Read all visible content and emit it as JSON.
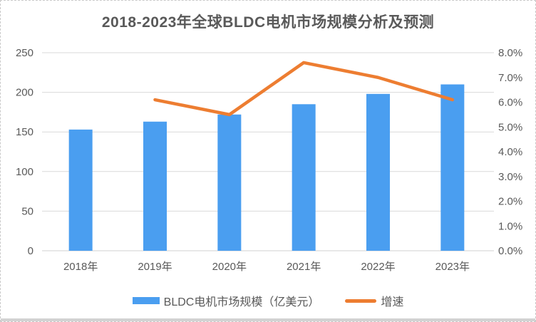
{
  "chart_data": {
    "type": "combo",
    "title": "2018-2023年全球BLDC电机市场规模分析及预测",
    "categories": [
      "2018年",
      "2019年",
      "2020年",
      "2021年",
      "2022年",
      "2023年"
    ],
    "series": [
      {
        "name": "BLDC电机市场规模（亿美元）",
        "type": "bar",
        "axis": "left",
        "color": "#4a9ef0",
        "values": [
          153,
          163,
          172,
          185,
          198,
          210
        ]
      },
      {
        "name": "增速",
        "type": "line",
        "axis": "right",
        "color": "#ed7d31",
        "unit": "%",
        "values": [
          null,
          6.1,
          5.5,
          7.6,
          7.0,
          6.1
        ]
      }
    ],
    "y_left": {
      "min": 0,
      "max": 250,
      "tick_step": 50,
      "ticks": [
        "0",
        "50",
        "100",
        "150",
        "200",
        "250"
      ]
    },
    "y_right": {
      "min": 0,
      "max": 8,
      "tick_step": 1,
      "ticks": [
        "0.0%",
        "1.0%",
        "2.0%",
        "3.0%",
        "4.0%",
        "5.0%",
        "6.0%",
        "7.0%",
        "8.0%"
      ]
    },
    "grid": true,
    "legend_position": "bottom",
    "grid_color": "#d9d9d9",
    "axis_line_color": "#d0d0d0",
    "text_color": "#595959"
  }
}
